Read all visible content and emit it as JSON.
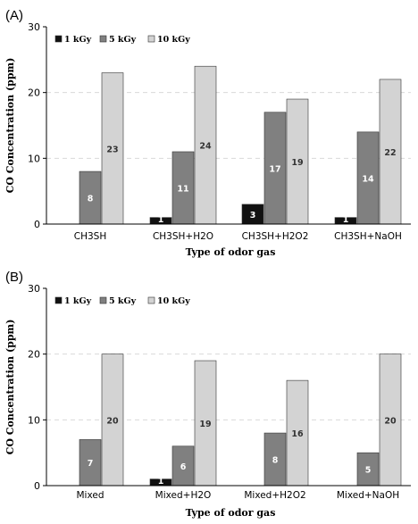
{
  "chart_data": [
    {
      "type": "bar",
      "panel_label": "(A)",
      "categories": [
        "CH3SH",
        "CH3SH+H2O",
        "CH3SH+H2O2",
        "CH3SH+NaOH"
      ],
      "series": [
        {
          "name": "1 kGy",
          "color": "#111111",
          "values": [
            0,
            1,
            3,
            1
          ],
          "labels": [
            "",
            "1",
            "3",
            "1"
          ]
        },
        {
          "name": "5 kGy",
          "color": "#808080",
          "values": [
            8,
            11,
            17,
            14
          ],
          "labels": [
            "8",
            "11",
            "17",
            "14"
          ]
        },
        {
          "name": "10 kGy",
          "color": "#d3d3d3",
          "values": [
            23,
            24,
            19,
            22
          ],
          "labels": [
            "23",
            "24",
            "19",
            "22"
          ]
        }
      ],
      "xlabel": "Type of odor gas",
      "ylabel": "CO Concentration  (ppm)",
      "ylim": [
        0,
        30
      ],
      "yticks": [
        "0",
        "10",
        "20",
        "30"
      ],
      "grid": true,
      "legend_position": "top-left"
    },
    {
      "type": "bar",
      "panel_label": "(B)",
      "categories": [
        "Mixed",
        "Mixed+H2O",
        "Mixed+H2O2",
        "Mixed+NaOH"
      ],
      "series": [
        {
          "name": "1 kGy",
          "color": "#111111",
          "values": [
            0,
            1,
            0,
            0
          ],
          "labels": [
            "",
            "1",
            "",
            ""
          ]
        },
        {
          "name": "5 kGy",
          "color": "#808080",
          "values": [
            7,
            6,
            8,
            5
          ],
          "labels": [
            "7",
            "6",
            "8",
            "5"
          ]
        },
        {
          "name": "10 kGy",
          "color": "#d3d3d3",
          "values": [
            20,
            19,
            16,
            20
          ],
          "labels": [
            "20",
            "19",
            "16",
            "20"
          ]
        }
      ],
      "xlabel": "Type of odor gas",
      "ylabel": "CO Concentration  (ppm)",
      "ylim": [
        0,
        30
      ],
      "yticks": [
        "0",
        "10",
        "20",
        "30"
      ],
      "grid": true,
      "legend_position": "top-left"
    }
  ]
}
